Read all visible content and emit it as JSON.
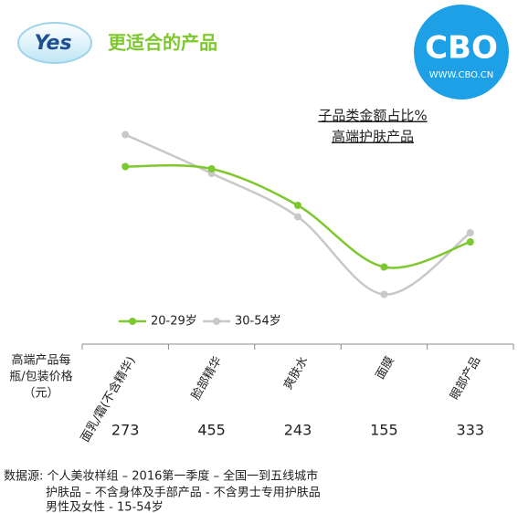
{
  "badge": "Yes",
  "logo": {
    "name": "CBO",
    "url": "WWW.CBO.CN"
  },
  "chart_data": {
    "type": "line",
    "title": "更适合的产品",
    "subtitle": [
      "子品类金额占比%",
      "高端护肤产品"
    ],
    "categories": [
      "面乳/霜(不含精华)",
      "脸部精华",
      "爽肤水",
      "面膜",
      "眼部产品"
    ],
    "series": [
      {
        "name": "20-29岁",
        "color": "#7dc82d",
        "values": [
          67,
          66,
          50,
          23,
          34
        ]
      },
      {
        "name": "30-54岁",
        "color": "#c8c8c8",
        "values": [
          81,
          64,
          45,
          11,
          38
        ]
      }
    ],
    "ylim": [
      0,
      100
    ],
    "price_label": [
      "高端产品每",
      "瓶/包装价格",
      "（元）"
    ],
    "prices": [
      273,
      455,
      243,
      155,
      333
    ]
  },
  "footnote": [
    "数据源: 个人美妆样组 – 2016第一季度 – 全国一到五线城市",
    "护肤品 – 不含身体及手部产品 - 不含男士专用护肤品",
    "男性及女性 - 15-54岁"
  ]
}
